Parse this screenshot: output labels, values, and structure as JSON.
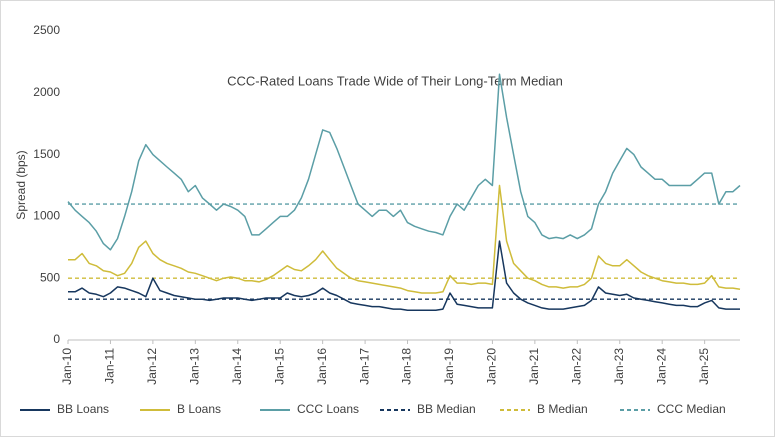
{
  "chart_data": {
    "type": "line",
    "title": "CCC-Rated Loans Trade Wide of Their Long-Term Median",
    "y_label": "Spread (bps)",
    "x": [
      "2010-01",
      "2010-03",
      "2010-05",
      "2010-07",
      "2010-09",
      "2010-11",
      "2011-01",
      "2011-03",
      "2011-05",
      "2011-07",
      "2011-09",
      "2011-11",
      "2012-01",
      "2012-03",
      "2012-05",
      "2012-07",
      "2012-09",
      "2012-11",
      "2013-01",
      "2013-03",
      "2013-05",
      "2013-07",
      "2013-09",
      "2013-11",
      "2014-01",
      "2014-03",
      "2014-05",
      "2014-07",
      "2014-09",
      "2014-11",
      "2015-01",
      "2015-03",
      "2015-05",
      "2015-07",
      "2015-09",
      "2015-11",
      "2016-01",
      "2016-03",
      "2016-05",
      "2016-07",
      "2016-09",
      "2016-11",
      "2017-01",
      "2017-03",
      "2017-05",
      "2017-07",
      "2017-09",
      "2017-11",
      "2018-01",
      "2018-03",
      "2018-05",
      "2018-07",
      "2018-09",
      "2018-11",
      "2019-01",
      "2019-03",
      "2019-05",
      "2019-07",
      "2019-09",
      "2019-11",
      "2020-01",
      "2020-03",
      "2020-05",
      "2020-07",
      "2020-09",
      "2020-11",
      "2021-01",
      "2021-03",
      "2021-05",
      "2021-07",
      "2021-09",
      "2021-11",
      "2022-01",
      "2022-03",
      "2022-05",
      "2022-07",
      "2022-09",
      "2022-11",
      "2023-01",
      "2023-03",
      "2023-05",
      "2023-07",
      "2023-09",
      "2023-11",
      "2024-01",
      "2024-03",
      "2024-05",
      "2024-07",
      "2024-09",
      "2024-11",
      "2025-01",
      "2025-03",
      "2025-05",
      "2025-07",
      "2025-09",
      "2025-11"
    ],
    "series": [
      {
        "name": "BB Loans",
        "color": "#17375e",
        "values": [
          390,
          390,
          420,
          380,
          370,
          350,
          380,
          430,
          420,
          400,
          380,
          350,
          500,
          400,
          380,
          360,
          350,
          340,
          330,
          330,
          320,
          330,
          340,
          340,
          340,
          330,
          320,
          330,
          340,
          340,
          340,
          380,
          360,
          350,
          360,
          380,
          420,
          380,
          360,
          330,
          300,
          290,
          280,
          270,
          270,
          260,
          250,
          250,
          240,
          240,
          240,
          240,
          240,
          250,
          380,
          290,
          280,
          270,
          260,
          260,
          260,
          800,
          460,
          380,
          330,
          300,
          280,
          260,
          250,
          250,
          250,
          260,
          270,
          280,
          320,
          430,
          380,
          370,
          360,
          370,
          340,
          330,
          320,
          310,
          300,
          290,
          280,
          280,
          270,
          270,
          300,
          320,
          260,
          250,
          250,
          250
        ]
      },
      {
        "name": "B Loans",
        "color": "#cfbc3a",
        "values": [
          650,
          650,
          700,
          620,
          600,
          560,
          550,
          520,
          540,
          620,
          750,
          800,
          700,
          650,
          620,
          600,
          580,
          550,
          540,
          520,
          500,
          480,
          500,
          510,
          500,
          480,
          480,
          470,
          490,
          520,
          560,
          600,
          570,
          560,
          600,
          650,
          720,
          650,
          580,
          540,
          500,
          480,
          470,
          460,
          450,
          440,
          430,
          420,
          400,
          390,
          380,
          380,
          380,
          390,
          520,
          460,
          460,
          450,
          460,
          460,
          450,
          1250,
          800,
          620,
          560,
          500,
          480,
          450,
          430,
          430,
          420,
          430,
          430,
          450,
          500,
          680,
          620,
          600,
          600,
          650,
          600,
          550,
          520,
          500,
          480,
          470,
          460,
          460,
          450,
          450,
          460,
          520,
          430,
          420,
          420,
          410
        ]
      },
      {
        "name": "CCC Loans",
        "color": "#5b9ea6",
        "values": [
          1120,
          1050,
          1000,
          950,
          880,
          780,
          730,
          820,
          1000,
          1200,
          1450,
          1580,
          1500,
          1450,
          1400,
          1350,
          1300,
          1200,
          1250,
          1150,
          1100,
          1050,
          1100,
          1080,
          1050,
          1000,
          850,
          850,
          900,
          950,
          1000,
          1000,
          1050,
          1150,
          1300,
          1500,
          1700,
          1680,
          1550,
          1400,
          1250,
          1100,
          1050,
          1000,
          1050,
          1050,
          1000,
          1050,
          950,
          920,
          900,
          880,
          870,
          850,
          1000,
          1100,
          1050,
          1150,
          1250,
          1300,
          1250,
          2150,
          1800,
          1500,
          1200,
          1000,
          950,
          850,
          820,
          830,
          820,
          850,
          820,
          850,
          900,
          1100,
          1200,
          1350,
          1450,
          1550,
          1500,
          1400,
          1350,
          1300,
          1300,
          1250,
          1250,
          1250,
          1250,
          1300,
          1350,
          1350,
          1100,
          1200,
          1200,
          1250
        ]
      }
    ],
    "reference_lines": [
      {
        "name": "BB Median",
        "color": "#17375e",
        "value": 330
      },
      {
        "name": "B Median",
        "color": "#cfbc3a",
        "value": 500
      },
      {
        "name": "CCC Median",
        "color": "#5b9ea6",
        "value": 1100
      }
    ],
    "xlim": [
      "2010-01",
      "2025-11"
    ],
    "xticks": [
      {
        "value": "2010-01",
        "label": "Jan-10"
      },
      {
        "value": "2011-01",
        "label": "Jan-11"
      },
      {
        "value": "2012-01",
        "label": "Jan-12"
      },
      {
        "value": "2013-01",
        "label": "Jan-13"
      },
      {
        "value": "2014-01",
        "label": "Jan-14"
      },
      {
        "value": "2015-01",
        "label": "Jan-15"
      },
      {
        "value": "2016-01",
        "label": "Jan-16"
      },
      {
        "value": "2017-01",
        "label": "Jan-17"
      },
      {
        "value": "2018-01",
        "label": "Jan-18"
      },
      {
        "value": "2019-01",
        "label": "Jan-19"
      },
      {
        "value": "2020-01",
        "label": "Jan-20"
      },
      {
        "value": "2021-01",
        "label": "Jan-21"
      },
      {
        "value": "2022-01",
        "label": "Jan-22"
      },
      {
        "value": "2023-01",
        "label": "Jan-23"
      },
      {
        "value": "2024-01",
        "label": "Jan-24"
      },
      {
        "value": "2025-01",
        "label": "Jan-25"
      }
    ],
    "ylim": [
      0,
      2500
    ],
    "yticks": [
      0,
      500,
      1000,
      1500,
      2000,
      2500
    ],
    "grid": false,
    "legend": "bottom"
  }
}
